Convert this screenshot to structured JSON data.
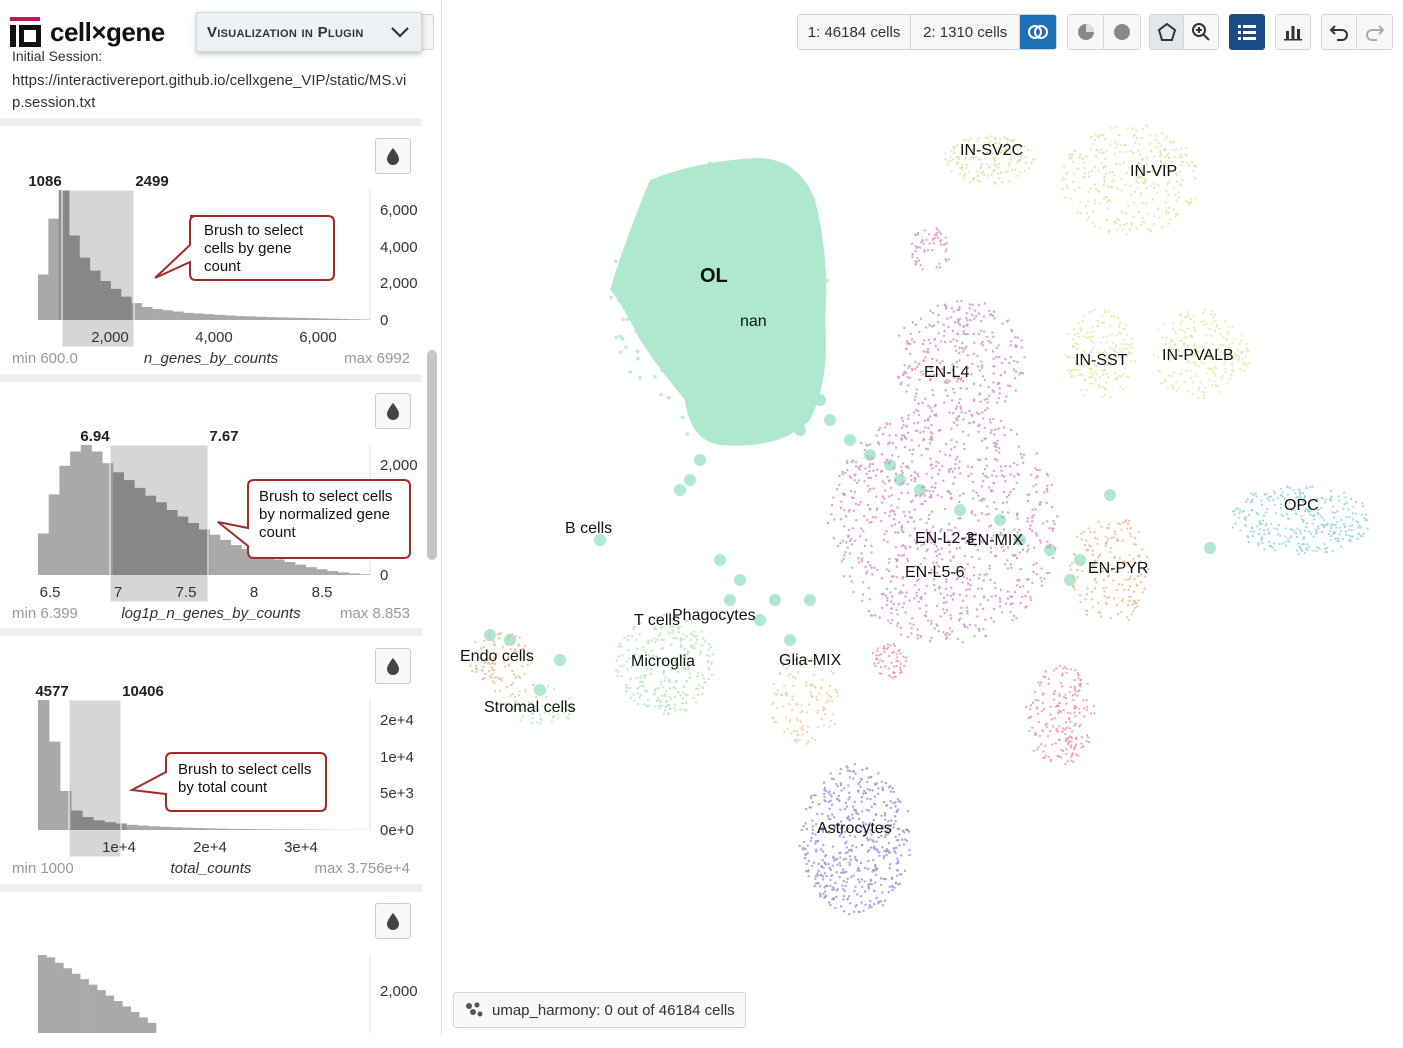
{
  "app": {
    "logo_text": "cell×gene",
    "plugin_menu_label": "Visualization in Plugin"
  },
  "session": {
    "clipped_heading": "Initial Session:",
    "url": "https://interactivereport.github.io/cellxgene_VIP/static/MS.vip.session.txt"
  },
  "histograms": [
    {
      "brush_low": "1086",
      "brush_high": "2499",
      "y_ticks": [
        "6,000",
        "4,000",
        "2,000",
        "0"
      ],
      "x_ticks": [
        "2,000",
        "4,000",
        "6,000"
      ],
      "min_label": "min 600.0",
      "max_label": "max 6992",
      "field": "n_genes_by_counts",
      "callout": "Brush to select cells by gene count",
      "counts": [
        0.35,
        0.78,
        1.0,
        0.65,
        0.48,
        0.38,
        0.3,
        0.24,
        0.18,
        0.13,
        0.1,
        0.085,
        0.075,
        0.065,
        0.055,
        0.05,
        0.045,
        0.04,
        0.035,
        0.03,
        0.028,
        0.025,
        0.022,
        0.02,
        0.018,
        0.016,
        0.014,
        0.012,
        0.01,
        0.008,
        0.006,
        0.004
      ]
    },
    {
      "brush_low": "6.94",
      "brush_high": "7.67",
      "y_ticks": [
        "2,000",
        "0"
      ],
      "x_ticks": [
        "6.5",
        "7",
        "7.5",
        "8",
        "8.5"
      ],
      "min_label": "min 6.399",
      "max_label": "max 8.853",
      "field": "log1p_n_genes_by_counts",
      "callout": "Brush to select cells by normalized gene count",
      "counts": [
        0.32,
        0.62,
        0.84,
        0.95,
        1.0,
        0.95,
        0.86,
        0.79,
        0.73,
        0.67,
        0.61,
        0.56,
        0.5,
        0.45,
        0.4,
        0.35,
        0.31,
        0.27,
        0.23,
        0.2,
        0.17,
        0.14,
        0.12,
        0.1,
        0.08,
        0.06,
        0.045,
        0.03,
        0.02,
        0.012,
        0.006
      ]
    },
    {
      "brush_low": "4577",
      "brush_high": "10406",
      "y_ticks": [
        "2e+4",
        "1e+4",
        "5e+3",
        "0e+0"
      ],
      "x_ticks": [
        "1e+4",
        "2e+4",
        "3e+4"
      ],
      "min_label": "min 1000",
      "max_label": "max 3.756e+4",
      "field": "total_counts",
      "callout": "Brush to select cells by total count",
      "counts": [
        1.0,
        0.68,
        0.3,
        0.15,
        0.1,
        0.075,
        0.06,
        0.05,
        0.04,
        0.034,
        0.029,
        0.025,
        0.021,
        0.018,
        0.015,
        0.013,
        0.011,
        0.009,
        0.008,
        0.007,
        0.006,
        0.005,
        0.004,
        0.0035,
        0.003,
        0.0025,
        0.002,
        0.0015,
        0.001,
        0.001
      ]
    },
    {
      "y_ticks": [
        "2,000"
      ],
      "counts": [
        1.0,
        0.97,
        0.9,
        0.83,
        0.76,
        0.69,
        0.62,
        0.55,
        0.48,
        0.41,
        0.34,
        0.27,
        0.2,
        0.13
      ]
    }
  ],
  "toolbar": {
    "set1": "1: 46184 cells",
    "set2": "2: 1310 cells"
  },
  "footer": {
    "embedding_status": "umap_harmony: 0 out of 46184 cells"
  },
  "clusters": [
    {
      "name": "OL",
      "big": true
    },
    {
      "name": "nan"
    },
    {
      "name": "IN-SV2C"
    },
    {
      "name": "IN-VIP"
    },
    {
      "name": "EN-L4"
    },
    {
      "name": "IN-SST"
    },
    {
      "name": "IN-PVALB"
    },
    {
      "name": "OPC"
    },
    {
      "name": "B cells"
    },
    {
      "name": "EN-L2-3"
    },
    {
      "name": "EN-MIX"
    },
    {
      "name": "EN-L5-6"
    },
    {
      "name": "EN-PYR"
    },
    {
      "name": "T cells"
    },
    {
      "name": "Phagocytes"
    },
    {
      "name": "Microglia"
    },
    {
      "name": "Glia-MIX"
    },
    {
      "name": "Endo cells"
    },
    {
      "name": "Stromal cells"
    },
    {
      "name": "Astrocytes"
    }
  ],
  "colors": {
    "ol": "#aee8cf",
    "en": "#d98fcf",
    "in_green": "#cdeaa0",
    "in_yellow": "#dfe8a0",
    "opc": "#8fd3d8",
    "astro": "#a494d6",
    "glia": "#f4c89a",
    "microglia": "#b6e6b8",
    "endo": "#f2b58a",
    "pink": "#ee90a8",
    "accent": "#1f6fb8",
    "callout_border": "#a52a2a"
  }
}
